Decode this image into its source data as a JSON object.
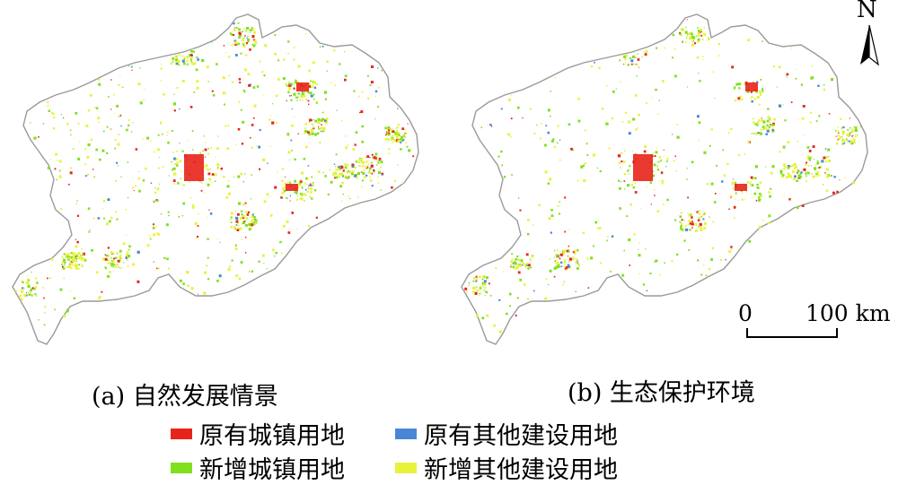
{
  "captions": {
    "a": "(a) 自然发展情景",
    "b": "(b) 生态保护环境"
  },
  "legend": [
    {
      "label": "原有城镇用地",
      "color": "#e8231a"
    },
    {
      "label": "原有其他建设用地",
      "color": "#4a86d6"
    },
    {
      "label": "新增城镇用地",
      "color": "#7fe01e"
    },
    {
      "label": "新增其他建设用地",
      "color": "#e8f23c"
    }
  ],
  "north_arrow": {
    "label": "N"
  },
  "scale_bar": {
    "start": "0",
    "end": "100 km"
  },
  "map_style": {
    "outline_color": "#9a9a9a"
  }
}
